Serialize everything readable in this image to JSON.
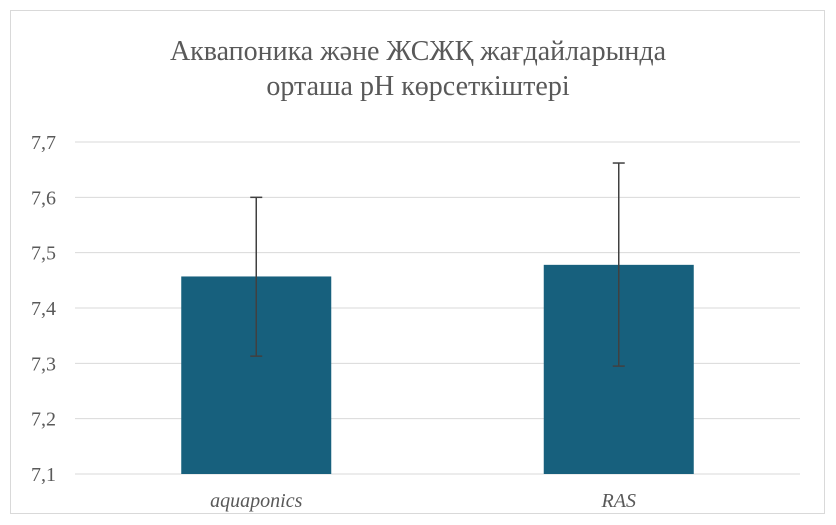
{
  "chart_data": {
    "type": "bar",
    "title_lines": [
      "Аквапоника және ЖСЖҚ жағдайларында",
      "орташа рН көрсеткіштері"
    ],
    "categories": [
      "aquaponics",
      "RAS"
    ],
    "values": [
      7.457,
      7.478
    ],
    "error_low": [
      7.313,
      7.295
    ],
    "error_high": [
      7.6,
      7.662
    ],
    "ylim": [
      7.1,
      7.7
    ],
    "yticks": [
      "7,1",
      "7,2",
      "7,3",
      "7,4",
      "7,5",
      "7,6",
      "7,7"
    ],
    "ytick_values": [
      7.1,
      7.2,
      7.3,
      7.4,
      7.5,
      7.6,
      7.7
    ],
    "grid": true,
    "bar_color": "#17607d",
    "error_bar_color": "#404040",
    "grid_color": "#d9d9d9"
  }
}
